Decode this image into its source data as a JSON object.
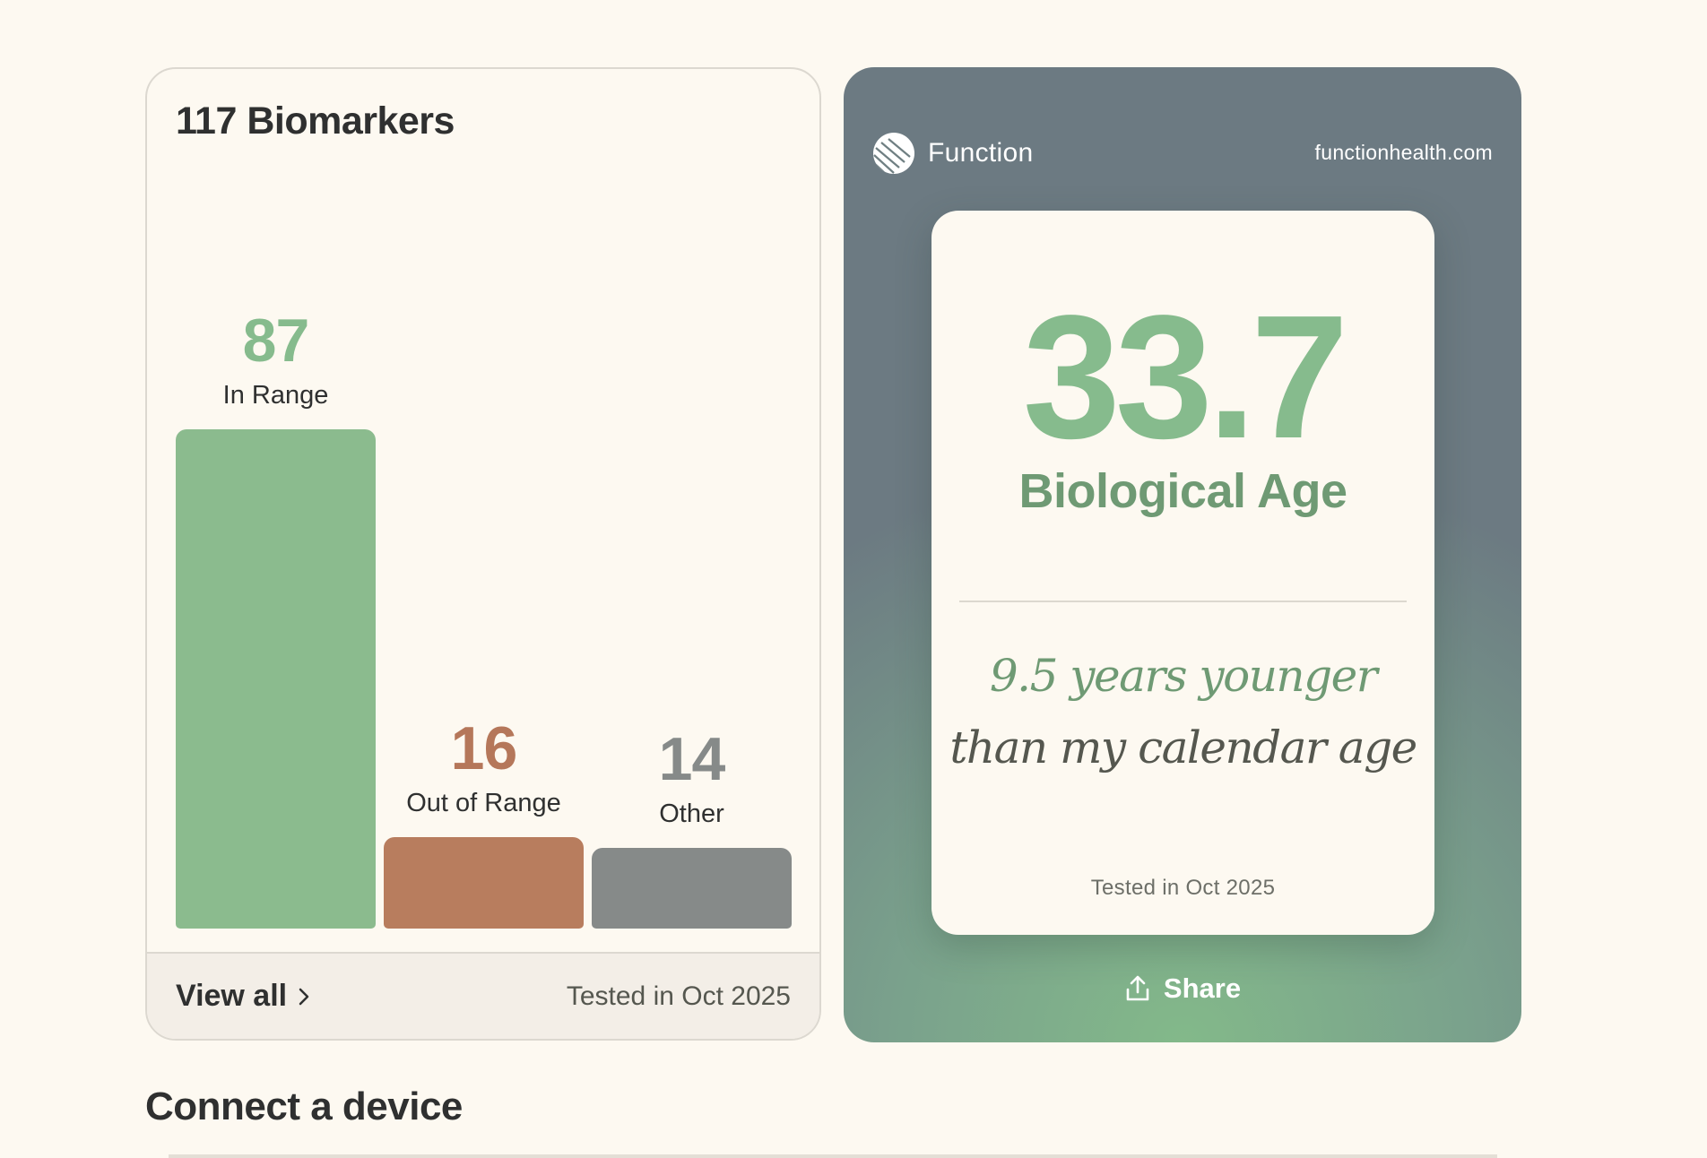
{
  "biomarkers": {
    "title": "117 Biomarkers",
    "view_all_label": "View all",
    "tested_label": "Tested in Oct 2025"
  },
  "chart_data": {
    "type": "bar",
    "title": "117 Biomarkers",
    "xlabel": "",
    "ylabel": "",
    "categories": [
      "In Range",
      "Out of Range",
      "Other"
    ],
    "values": [
      87,
      16,
      14
    ],
    "colors": [
      "#8bbb8e",
      "#b87d5e",
      "#868a89"
    ],
    "value_colors": [
      "#86bb8d",
      "#b5775a",
      "#868a89"
    ],
    "grid": false
  },
  "bio_age": {
    "brand": "Function",
    "url": "functionhealth.com",
    "value": "33.7",
    "label": "Biological Age",
    "line1": "9.5 years younger",
    "line2": "than my calendar age",
    "tested_label": "Tested in Oct 2025",
    "share_label": "Share"
  },
  "section": {
    "title": "Connect a device"
  },
  "icons": {
    "chevron": "chevron-right-icon",
    "logo": "function-logo-icon",
    "share": "share-upload-icon"
  }
}
